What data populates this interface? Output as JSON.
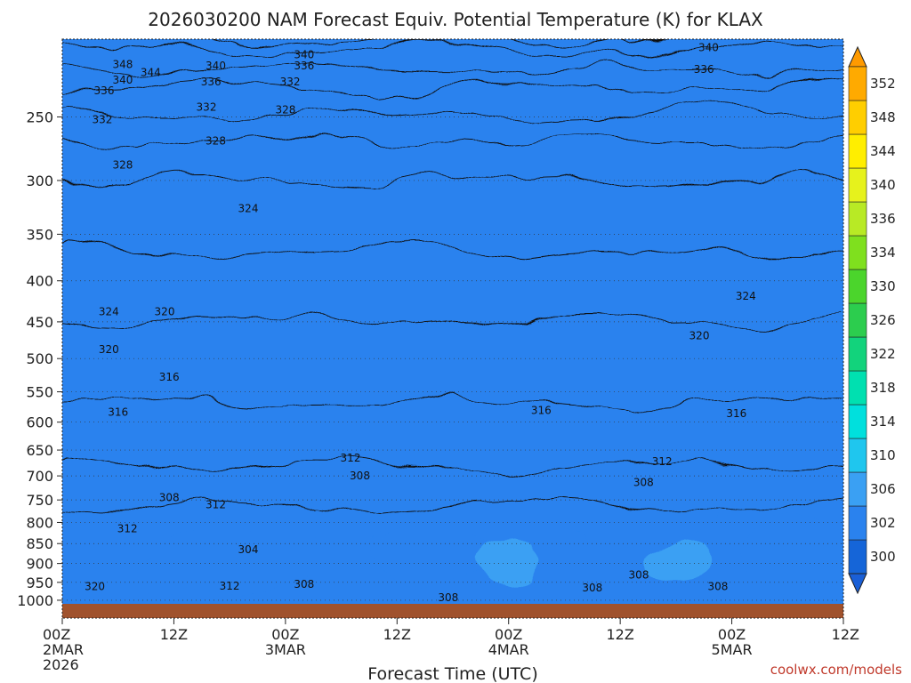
{
  "chart_data": {
    "type": "heatmap",
    "title": "2026030200 NAM Forecast Equiv. Potential Temperature (K) for KLAX",
    "xlabel": "Forecast Time (UTC)",
    "ylabel": "",
    "credit": "coolwx.com/models",
    "x_ticks": [
      {
        "hour": 0,
        "lines": [
          "00Z",
          "2MAR",
          "2026"
        ]
      },
      {
        "hour": 12,
        "lines": [
          "12Z"
        ]
      },
      {
        "hour": 24,
        "lines": [
          "00Z",
          "3MAR"
        ]
      },
      {
        "hour": 36,
        "lines": [
          "12Z"
        ]
      },
      {
        "hour": 48,
        "lines": [
          "00Z",
          "4MAR"
        ]
      },
      {
        "hour": 60,
        "lines": [
          "12Z"
        ]
      },
      {
        "hour": 72,
        "lines": [
          "00Z",
          "5MAR"
        ]
      },
      {
        "hour": 84,
        "lines": [
          "12Z"
        ]
      }
    ],
    "xlim": [
      0,
      84
    ],
    "y_axis": "pressure (hPa), log scale, reversed",
    "y_ticks": [
      250,
      300,
      350,
      400,
      450,
      500,
      550,
      600,
      650,
      700,
      750,
      800,
      850,
      900,
      950,
      1000
    ],
    "ylim": [
      1013,
      200
    ],
    "grid": "dotted horizontal at pressure ticks",
    "colorbar": {
      "labels": [
        300,
        302,
        306,
        310,
        314,
        318,
        322,
        326,
        330,
        334,
        336,
        340,
        344,
        348,
        352
      ],
      "colors": [
        "#1565d8",
        "#2a82ee",
        "#3aa0f3",
        "#1fc6ee",
        "#00e0dd",
        "#00e0b0",
        "#12d37c",
        "#2ccd4e",
        "#4bd52c",
        "#7fe01e",
        "#b8ea25",
        "#e6f21c",
        "#ffee00",
        "#ffce00",
        "#ffaa00"
      ],
      "below_color": "#1a5fd6",
      "above_color": "#ff9a00"
    },
    "isotherm_levels": [
      304,
      308,
      312,
      316,
      320,
      324,
      328,
      332,
      336,
      340,
      344,
      348
    ],
    "contour_labels": [
      {
        "text": "348",
        "hour": 6.5,
        "p": 215
      },
      {
        "text": "344",
        "hour": 9.5,
        "p": 220
      },
      {
        "text": "340",
        "hour": 6.5,
        "p": 225
      },
      {
        "text": "336",
        "hour": 4.5,
        "p": 232
      },
      {
        "text": "332",
        "hour": 4.3,
        "p": 252
      },
      {
        "text": "328",
        "hour": 6.5,
        "p": 287
      },
      {
        "text": "340",
        "hour": 16.5,
        "p": 216
      },
      {
        "text": "336",
        "hour": 16,
        "p": 226
      },
      {
        "text": "332",
        "hour": 15.5,
        "p": 243
      },
      {
        "text": "328",
        "hour": 16.5,
        "p": 268
      },
      {
        "text": "340",
        "hour": 26,
        "p": 209
      },
      {
        "text": "336",
        "hour": 26,
        "p": 216
      },
      {
        "text": "332",
        "hour": 24.5,
        "p": 226
      },
      {
        "text": "328",
        "hour": 24,
        "p": 245
      },
      {
        "text": "324",
        "hour": 20,
        "p": 325
      },
      {
        "text": "324",
        "hour": 5,
        "p": 437
      },
      {
        "text": "320",
        "hour": 11,
        "p": 437
      },
      {
        "text": "320",
        "hour": 5,
        "p": 487
      },
      {
        "text": "316",
        "hour": 6,
        "p": 583
      },
      {
        "text": "316",
        "hour": 11.5,
        "p": 527
      },
      {
        "text": "316",
        "hour": 51.5,
        "p": 580
      },
      {
        "text": "312",
        "hour": 31,
        "p": 665
      },
      {
        "text": "312",
        "hour": 64.5,
        "p": 672
      },
      {
        "text": "312",
        "hour": 7,
        "p": 815
      },
      {
        "text": "312",
        "hour": 16.5,
        "p": 760
      },
      {
        "text": "308",
        "hour": 11.5,
        "p": 745
      },
      {
        "text": "308",
        "hour": 32,
        "p": 700
      },
      {
        "text": "308",
        "hour": 62.5,
        "p": 713
      },
      {
        "text": "308",
        "hour": 62,
        "p": 930
      },
      {
        "text": "308",
        "hour": 26,
        "p": 955
      },
      {
        "text": "308",
        "hour": 41.5,
        "p": 992
      },
      {
        "text": "308",
        "hour": 57,
        "p": 965
      },
      {
        "text": "304",
        "hour": 20,
        "p": 865
      },
      {
        "text": "312",
        "hour": 18,
        "p": 960
      },
      {
        "text": "320",
        "hour": 3.5,
        "p": 962
      },
      {
        "text": "324",
        "hour": 73.5,
        "p": 418
      },
      {
        "text": "320",
        "hour": 68.5,
        "p": 468
      },
      {
        "text": "316",
        "hour": 72.5,
        "p": 585
      },
      {
        "text": "308",
        "hour": 70.5,
        "p": 962
      },
      {
        "text": "340",
        "hour": 69.5,
        "p": 205
      },
      {
        "text": "336",
        "hour": 69,
        "p": 218
      }
    ]
  }
}
